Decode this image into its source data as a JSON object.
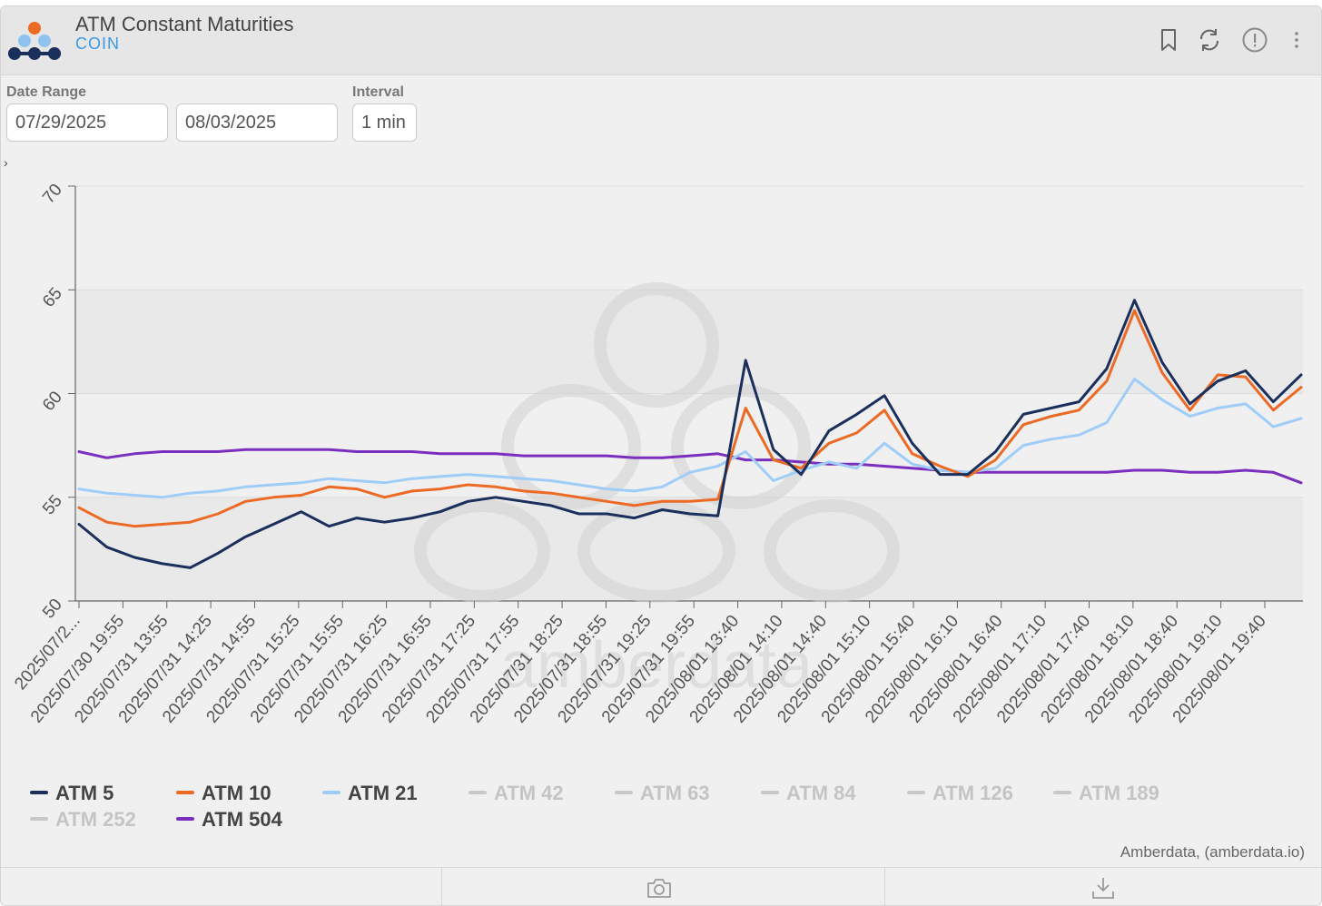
{
  "header": {
    "title": "ATM Constant Maturities",
    "subtitle": "COIN",
    "icons": [
      "bookmark-icon",
      "refresh-icon",
      "info-icon",
      "more-vertical-icon"
    ]
  },
  "controls": {
    "date_range_label": "Date Range",
    "start_date": "07/29/2025",
    "end_date": "08/03/2025",
    "interval_label": "Interval",
    "interval": "1 min",
    "expander": "›"
  },
  "credit": "Amberdata, (amberdata.io)",
  "watermark": "amberdata",
  "footer": {
    "icons": [
      "camera-icon",
      "download-icon"
    ]
  },
  "colors": {
    "atm5": "#1a2f5c",
    "atm10": "#ec6a24",
    "atm21": "#9fcdf8",
    "atm504": "#7a2fbf",
    "hidden": "#c8c8c8",
    "accent": "#3b9ae8"
  },
  "chart_data": {
    "type": "line",
    "ylim": [
      50,
      70
    ],
    "yticks": [
      "50",
      "55",
      "60",
      "65",
      "70"
    ],
    "grid": true,
    "legend_position": "bottom",
    "x_tick_labels": [
      "2025/07/2...",
      "2025/07/30 19:55",
      "2025/07/31 13:55",
      "2025/07/31 14:25",
      "2025/07/31 14:55",
      "2025/07/31 15:25",
      "2025/07/31 15:55",
      "2025/07/31 16:25",
      "2025/07/31 16:55",
      "2025/07/31 17:25",
      "2025/07/31 17:55",
      "2025/07/31 18:25",
      "2025/07/31 18:55",
      "2025/07/31 19:25",
      "2025/07/31 19:55",
      "2025/08/01 13:40",
      "2025/08/01 14:10",
      "2025/08/01 14:40",
      "2025/08/01 15:10",
      "2025/08/01 15:40",
      "2025/08/01 16:10",
      "2025/08/01 16:40",
      "2025/08/01 17:10",
      "2025/08/01 17:40",
      "2025/08/01 18:10",
      "2025/08/01 18:40",
      "2025/08/01 19:10",
      "2025/08/01 19:40"
    ],
    "legend": [
      {
        "name": "ATM 5",
        "visible": true
      },
      {
        "name": "ATM 10",
        "visible": true
      },
      {
        "name": "ATM 21",
        "visible": true
      },
      {
        "name": "ATM 42",
        "visible": false
      },
      {
        "name": "ATM 63",
        "visible": false
      },
      {
        "name": "ATM 84",
        "visible": false
      },
      {
        "name": "ATM 126",
        "visible": false
      },
      {
        "name": "ATM 189",
        "visible": false
      },
      {
        "name": "ATM 252",
        "visible": false
      },
      {
        "name": "ATM 504",
        "visible": true
      }
    ],
    "series": [
      {
        "name": "ATM 5",
        "color": "#1a2f5c",
        "values": [
          53.7,
          52.6,
          52.1,
          51.8,
          51.6,
          52.3,
          53.1,
          53.7,
          54.3,
          53.6,
          54.0,
          53.8,
          54.0,
          54.3,
          54.8,
          55.0,
          54.8,
          54.6,
          54.2,
          54.2,
          54.0,
          54.4,
          54.2,
          54.1,
          61.6,
          57.3,
          56.1,
          58.2,
          59.0,
          59.9,
          57.6,
          56.1,
          56.1,
          57.2,
          59.0,
          59.3,
          59.6,
          61.2,
          64.5,
          61.5,
          59.5,
          60.6,
          61.1,
          59.6,
          60.9
        ]
      },
      {
        "name": "ATM 10",
        "color": "#ec6a24",
        "values": [
          54.5,
          53.8,
          53.6,
          53.7,
          53.8,
          54.2,
          54.8,
          55.0,
          55.1,
          55.5,
          55.4,
          55.0,
          55.3,
          55.4,
          55.6,
          55.5,
          55.3,
          55.2,
          55.0,
          54.8,
          54.6,
          54.8,
          54.8,
          54.9,
          59.3,
          56.8,
          56.4,
          57.6,
          58.1,
          59.2,
          57.1,
          56.5,
          56.0,
          56.8,
          58.5,
          58.9,
          59.2,
          60.6,
          64.0,
          61.0,
          59.2,
          60.9,
          60.8,
          59.2,
          60.3
        ]
      },
      {
        "name": "ATM 21",
        "color": "#9fcdf8",
        "values": [
          55.4,
          55.2,
          55.1,
          55.0,
          55.2,
          55.3,
          55.5,
          55.6,
          55.7,
          55.9,
          55.8,
          55.7,
          55.9,
          56.0,
          56.1,
          56.0,
          55.9,
          55.8,
          55.6,
          55.4,
          55.3,
          55.5,
          56.2,
          56.5,
          57.2,
          55.8,
          56.3,
          56.7,
          56.4,
          57.6,
          56.6,
          56.3,
          56.2,
          56.4,
          57.5,
          57.8,
          58.0,
          58.6,
          60.7,
          59.7,
          58.9,
          59.3,
          59.5,
          58.4,
          58.8
        ]
      },
      {
        "name": "ATM 504",
        "color": "#7a2fbf",
        "values": [
          57.2,
          56.9,
          57.1,
          57.2,
          57.2,
          57.2,
          57.3,
          57.3,
          57.3,
          57.3,
          57.2,
          57.2,
          57.2,
          57.1,
          57.1,
          57.1,
          57.0,
          57.0,
          57.0,
          57.0,
          56.9,
          56.9,
          57.0,
          57.1,
          56.8,
          56.8,
          56.7,
          56.6,
          56.6,
          56.5,
          56.4,
          56.3,
          56.2,
          56.2,
          56.2,
          56.2,
          56.2,
          56.2,
          56.3,
          56.3,
          56.2,
          56.2,
          56.3,
          56.2,
          55.7
        ]
      }
    ]
  }
}
